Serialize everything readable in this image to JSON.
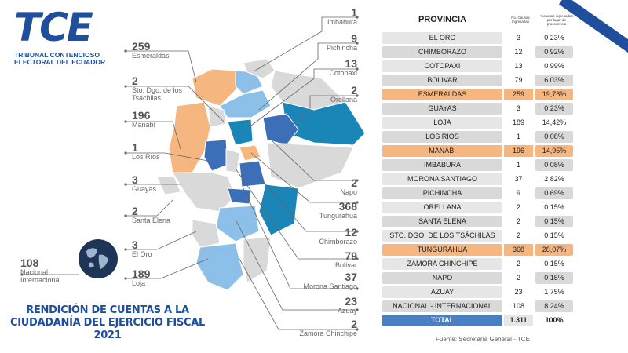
{
  "logo": {
    "mark": "TCE",
    "line1": "TRIBUNAL CONTENCIOSO",
    "line2": "ELECTORAL DEL ECUADOR"
  },
  "callouts": [
    {
      "id": "imbabura",
      "count": "1",
      "name": "Imbabura"
    },
    {
      "id": "pichincha",
      "count": "9",
      "name": "Pichincha"
    },
    {
      "id": "cotopaxi",
      "count": "13",
      "name": "Cotopaxi"
    },
    {
      "id": "orellana",
      "count": "2",
      "name": "Orellana"
    },
    {
      "id": "esmeraldas",
      "count": "259",
      "name": "Esmeraldas"
    },
    {
      "id": "tsachilas",
      "count": "2",
      "name": "Sto. Dgo. de los Tsáchilas"
    },
    {
      "id": "manabi",
      "count": "196",
      "name": "Manabí"
    },
    {
      "id": "losrios",
      "count": "1",
      "name": "Los Ríos"
    },
    {
      "id": "guayas",
      "count": "3",
      "name": "Guayas"
    },
    {
      "id": "santaelena",
      "count": "2",
      "name": "Santa Elena"
    },
    {
      "id": "eloro",
      "count": "3",
      "name": "El Oro"
    },
    {
      "id": "loja",
      "count": "189",
      "name": "Loja"
    },
    {
      "id": "napo",
      "count": "2",
      "name": "Napo"
    },
    {
      "id": "tungurahua",
      "count": "368",
      "name": "Tungurahua"
    },
    {
      "id": "chimborazo",
      "count": "12",
      "name": "Chimborazo"
    },
    {
      "id": "bolivar",
      "count": "79",
      "name": "Bolívar"
    },
    {
      "id": "morona",
      "count": "37",
      "name": "Morona Santiago"
    },
    {
      "id": "azuay",
      "count": "23",
      "name": "Azuay"
    },
    {
      "id": "zamora",
      "count": "2",
      "name": "Zamora Chinchipe"
    },
    {
      "id": "nacional",
      "count": "108",
      "name": "Nacional Internacional"
    }
  ],
  "title": {
    "line1": "RENDICIÓN DE CUENTAS A LA",
    "line2": "CIUDADANÍA DEL EJERCICIO FISCAL",
    "line3": "2021"
  },
  "table": {
    "header_province": "PROVINCIA",
    "header_count": "No. Causas Ingresadas",
    "header_pct": "%causas ingresadas por lugar de procedencia",
    "rows": [
      {
        "province": "EL ORO",
        "count": "3",
        "pct": "0,23%",
        "highlight": false
      },
      {
        "province": "CHIMBORAZO",
        "count": "12",
        "pct": "0,92%",
        "highlight": false
      },
      {
        "province": "COTOPAXI",
        "count": "13",
        "pct": "0,99%",
        "highlight": false
      },
      {
        "province": "BOLIVAR",
        "count": "79",
        "pct": "6,03%",
        "highlight": false
      },
      {
        "province": "ESMERALDAS",
        "count": "259",
        "pct": "19,76%",
        "highlight": true
      },
      {
        "province": "GUAYAS",
        "count": "3",
        "pct": "0,23%",
        "highlight": false
      },
      {
        "province": "LOJA",
        "count": "189",
        "pct": "14,42%",
        "highlight": false
      },
      {
        "province": "LOS RÍOS",
        "count": "1",
        "pct": "0,08%",
        "highlight": false
      },
      {
        "province": "MANABÍ",
        "count": "196",
        "pct": "14,95%",
        "highlight": true
      },
      {
        "province": "IMBABURA",
        "count": "1",
        "pct": "0,08%",
        "highlight": false
      },
      {
        "province": "MORONA SANTIAGO",
        "count": "37",
        "pct": "2,82%",
        "highlight": false
      },
      {
        "province": "PICHINCHA",
        "count": "9",
        "pct": "0,69%",
        "highlight": false
      },
      {
        "province": "ORELLANA",
        "count": "2",
        "pct": "0,15%",
        "highlight": false
      },
      {
        "province": "SANTA ELENA",
        "count": "2",
        "pct": "0,15%",
        "highlight": false
      },
      {
        "province": "STO. DGO. DE LOS TSÁCHILAS",
        "count": "2",
        "pct": "0,15%",
        "highlight": false
      },
      {
        "province": "TUNGURAHUA",
        "count": "368",
        "pct": "28,07%",
        "highlight": true
      },
      {
        "province": "ZAMORA CHINCHIPE",
        "count": "2",
        "pct": "0,15%",
        "highlight": false
      },
      {
        "province": "NAPO",
        "count": "2",
        "pct": "0,15%",
        "highlight": false
      },
      {
        "province": "AZUAY",
        "count": "23",
        "pct": "1,75%",
        "highlight": false
      },
      {
        "province": "NACIONAL - INTERNACIONAL",
        "count": "108",
        "pct": "8,24%",
        "highlight": false
      }
    ],
    "total_label": "TOTAL",
    "total_count": "1.311",
    "total_pct": "100%"
  },
  "source": "Fuente: Secretaría General - TCE",
  "colors": {
    "brand_blue": "#1f4e9c",
    "highlight_orange": "#f5b680",
    "map_dark_blue": "#3c6fb7",
    "map_teal": "#1a86b8",
    "map_light_blue": "#8cc0e8",
    "map_grey": "#d9d9d9"
  }
}
